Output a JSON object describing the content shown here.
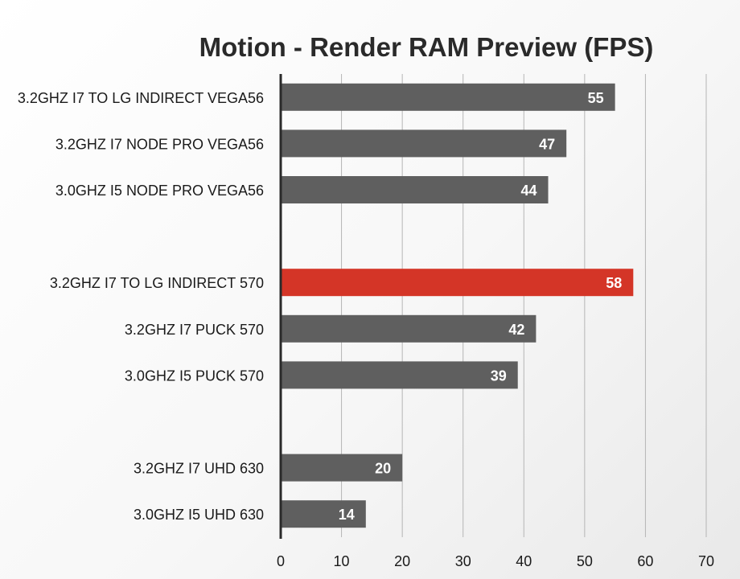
{
  "chart_data": {
    "type": "bar",
    "orientation": "horizontal",
    "title": "Motion - Render RAM Preview (FPS)",
    "xlabel": "",
    "ylabel": "",
    "xlim": [
      0,
      70
    ],
    "xticks": [
      0,
      10,
      20,
      30,
      40,
      50,
      60,
      70
    ],
    "grid": "vertical",
    "legend": "none",
    "categories": [
      "3.2GHZ I7  TO LG INDIRECT VEGA56",
      "3.2GHZ I7 NODE PRO VEGA56",
      "3.0GHZ I5 NODE PRO VEGA56",
      "",
      "3.2GHZ I7 TO LG INDIRECT 570",
      "3.2GHZ I7 PUCK 570",
      "3.0GHZ I5 PUCK 570",
      "",
      "3.2GHZ I7 UHD 630",
      "3.0GHZ I5 UHD 630"
    ],
    "values": [
      55,
      47,
      44,
      null,
      58,
      42,
      39,
      null,
      20,
      14
    ],
    "data_labels": [
      "55",
      "47",
      "44",
      "",
      "58",
      "42",
      "39",
      "",
      "20",
      "14"
    ],
    "highlight_index": 4,
    "colors": {
      "bar": "#5f5f5f",
      "highlight": "#d43527",
      "axis": "#2a2a2a",
      "grid": "#b5b5b5",
      "label_text": "#ffffff",
      "category_text": "#1a1a1a"
    }
  }
}
